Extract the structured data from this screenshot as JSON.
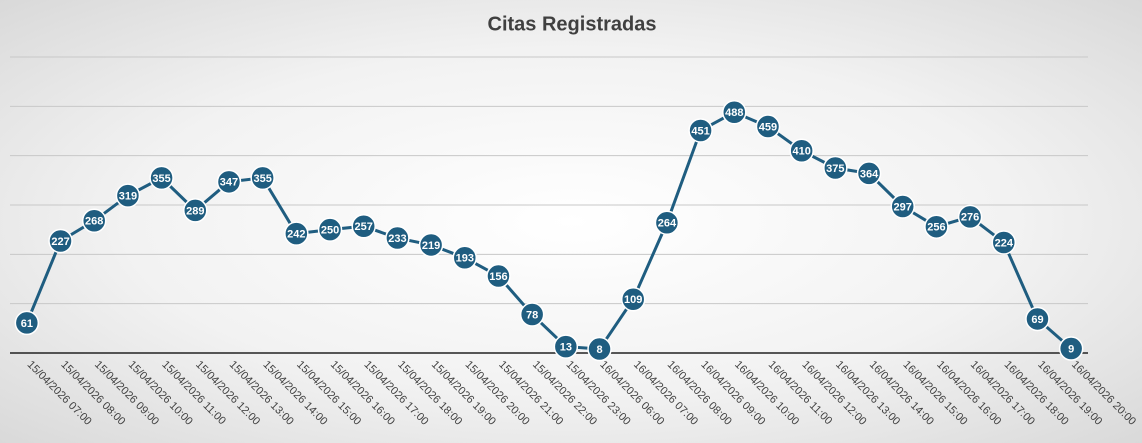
{
  "chart_data": {
    "type": "line",
    "title": "Citas Registradas",
    "categories": [
      "15/04/2026 07:00",
      "15/04/2026 08:00",
      "15/04/2026 09:00",
      "15/04/2026 10:00",
      "15/04/2026 11:00",
      "15/04/2026 12:00",
      "15/04/2026 13:00",
      "15/04/2026 14:00",
      "15/04/2026 15:00",
      "15/04/2026 16:00",
      "15/04/2026 17:00",
      "15/04/2026 18:00",
      "15/04/2026 19:00",
      "15/04/2026 20:00",
      "15/04/2026 21:00",
      "15/04/2026 22:00",
      "15/04/2026 23:00",
      "16/04/2026 06:00",
      "16/04/2026 07:00",
      "16/04/2026 08:00",
      "16/04/2026 09:00",
      "16/04/2026 10:00",
      "16/04/2026 11:00",
      "16/04/2026 12:00",
      "16/04/2026 13:00",
      "16/04/2026 14:00",
      "16/04/2026 15:00",
      "16/04/2026 16:00",
      "16/04/2026 17:00",
      "16/04/2026 18:00",
      "16/04/2026 19:00",
      "16/04/2026 20:00"
    ],
    "values": [
      61,
      227,
      268,
      319,
      355,
      289,
      347,
      355,
      242,
      250,
      257,
      233,
      219,
      193,
      156,
      78,
      13,
      8,
      109,
      264,
      451,
      488,
      459,
      410,
      375,
      364,
      297,
      256,
      276,
      224,
      69,
      9
    ],
    "color": "#1f5d80",
    "ylim": [
      0,
      600
    ],
    "yticks": [
      0,
      100,
      200,
      300,
      400,
      500,
      600
    ],
    "grid": true
  }
}
